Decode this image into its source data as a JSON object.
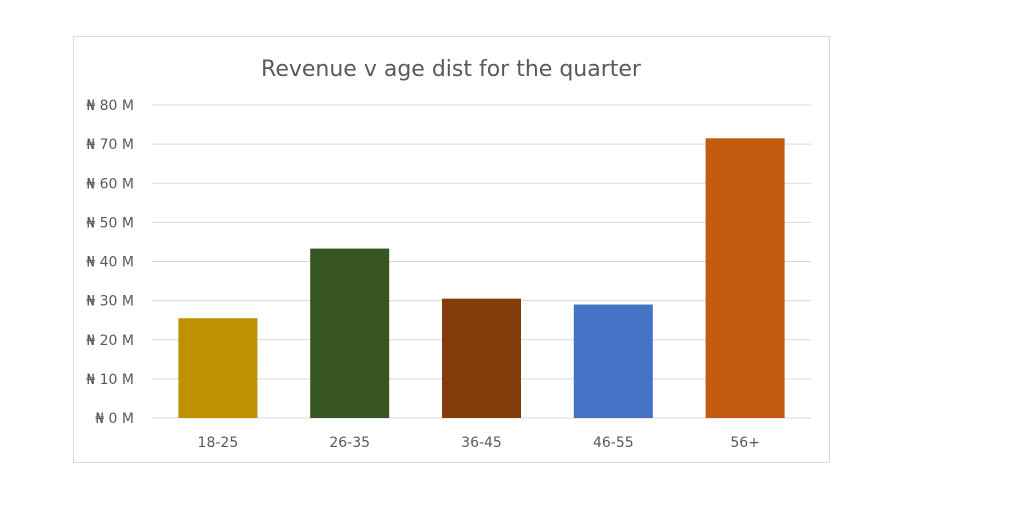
{
  "chart_data": {
    "type": "bar",
    "title": "Revenue v age dist for the quarter",
    "categories": [
      "18-25",
      "26-35",
      "36-45",
      "46-55",
      "56+"
    ],
    "values": [
      25.5,
      43.3,
      30.5,
      29.0,
      71.5
    ],
    "colors": [
      "#bf9000",
      "#375623",
      "#843c0c",
      "#4472c4",
      "#c55a11"
    ],
    "ylim": [
      0,
      80
    ],
    "yticks": [
      {
        "value": 80,
        "label": "₦ 80 M"
      },
      {
        "value": 70,
        "label": "₦ 70 M"
      },
      {
        "value": 60,
        "label": "₦ 60 M"
      },
      {
        "value": 50,
        "label": "₦ 50 M"
      },
      {
        "value": 40,
        "label": "₦ 40 M"
      },
      {
        "value": 30,
        "label": "₦ 30 M"
      },
      {
        "value": 20,
        "label": "₦ 20 M"
      },
      {
        "value": 10,
        "label": "₦ 10 M"
      },
      {
        "value": 0,
        "label": "₦ 0 M"
      }
    ],
    "grid": true,
    "legend": "none"
  }
}
